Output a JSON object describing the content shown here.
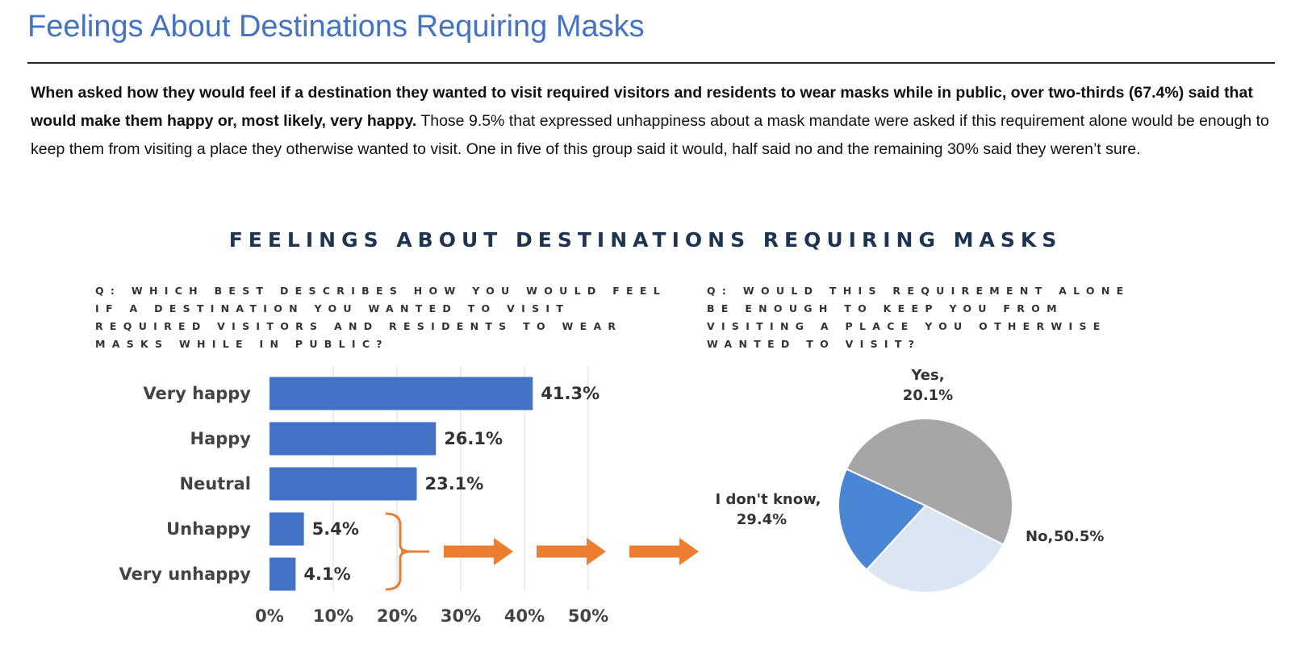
{
  "page": {
    "title": "Feelings About Destinations Requiring Masks",
    "intro_bold": "When asked how they would feel if a destination they wanted to visit required visitors and residents to wear masks while in public, over two-thirds (67.4%) said that would make them happy or, most likely, very happy.",
    "intro_rest": " Those 9.5% that expressed unhappiness about a mask mandate were asked if this requirement alone would be enough to keep them from visiting a place they otherwise wanted to visit. One in five of this group said it would, half said no and the remaining 30% said they weren’t sure."
  },
  "figure": {
    "title": "FEELINGS ABOUT DESTINATIONS REQUIRING MASKS",
    "left_question": "Q: WHICH BEST DESCRIBES HOW YOU WOULD FEEL IF A DESTINATION YOU WANTED TO VISIT REQUIRED VISITORS AND RESIDENTS TO WEAR MASKS WHILE IN PUBLIC?",
    "right_question": "Q: WOULD THIS REQUIREMENT ALONE BE ENOUGH TO KEEP YOU FROM VISITING A PLACE YOU OTHERWISE WANTED TO VISIT?"
  },
  "colors": {
    "bar": "#4472c4",
    "arrow": "#ed7d31",
    "pie_yes": "#4a86d4",
    "pie_no": "#a6a6a6",
    "pie_dont_know": "#dce6f2",
    "gridline": "#d9d9d9"
  },
  "chart_data": [
    {
      "type": "bar",
      "orientation": "horizontal",
      "categories": [
        "Very happy",
        "Happy",
        "Neutral",
        "Unhappy",
        "Very unhappy"
      ],
      "values": [
        41.3,
        26.1,
        23.1,
        5.4,
        4.1
      ],
      "value_labels": [
        "41.3%",
        "26.1%",
        "23.1%",
        "5.4%",
        "4.1%"
      ],
      "xlim": [
        0,
        50
      ],
      "xticks": [
        0,
        10,
        20,
        30,
        40,
        50
      ],
      "xtick_labels": [
        "0%",
        "10%",
        "20%",
        "30%",
        "40%",
        "50%"
      ],
      "grid": true
    },
    {
      "type": "pie",
      "labels": [
        "Yes,",
        "No,",
        "I don't know,"
      ],
      "values": [
        20.1,
        50.5,
        29.4
      ],
      "value_labels": [
        "20.1%",
        "50.5%",
        "29.4%"
      ]
    }
  ]
}
